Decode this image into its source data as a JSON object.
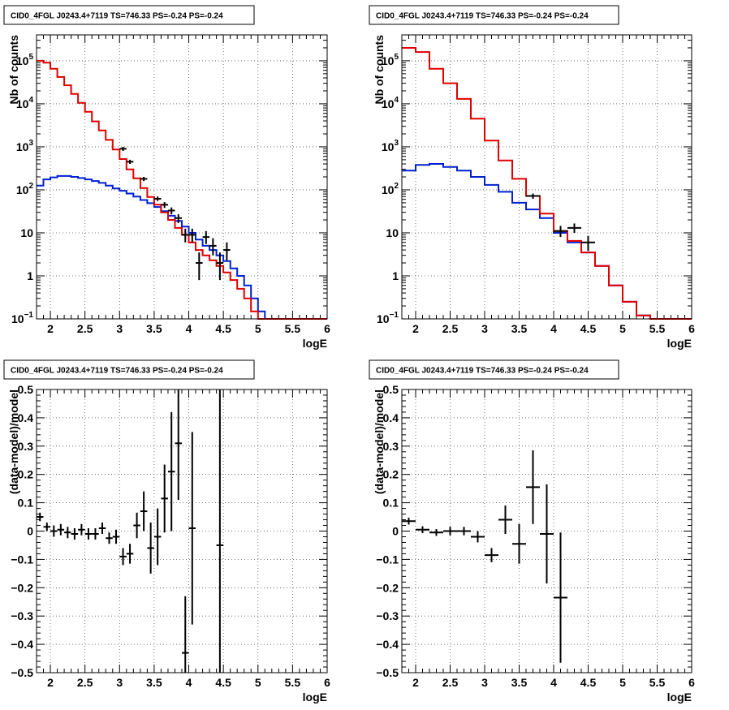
{
  "colors": {
    "total_model": "#e00000",
    "source_model": "#0020d0",
    "data": "#000000",
    "frame": "#000000",
    "grid": "#555555"
  },
  "chart_data": [
    {
      "type": "line",
      "title": "CID0_4FGL J0243.4+7119 TS=746.33 PS=-0.24 PS=-0.24",
      "xlabel": "logE",
      "ylabel": "Nb of counts",
      "log_y": true,
      "xlim": [
        1.8,
        6.0
      ],
      "ylim": [
        0.1,
        400000
      ],
      "grid": true,
      "x_ticks": [
        2,
        2.5,
        3,
        3.5,
        4,
        4.5,
        5,
        5.5,
        6
      ],
      "x_tick_labels": [
        "2",
        "2.5",
        "3",
        "3.5",
        "4",
        "4.5",
        "5",
        "5.5",
        "6"
      ],
      "y_ticks": [
        0.1,
        1,
        10,
        100,
        1000,
        10000,
        100000
      ],
      "y_tick_labels": [
        {
          "base": "10",
          "exp": "−1"
        },
        {
          "base": "1",
          "exp": ""
        },
        {
          "base": "10",
          "exp": ""
        },
        {
          "base": "10",
          "exp": "2"
        },
        {
          "base": "10",
          "exp": "3"
        },
        {
          "base": "10",
          "exp": "4"
        },
        {
          "base": "10",
          "exp": "5"
        }
      ],
      "bin_edges": [
        1.8,
        1.9,
        2.0,
        2.1,
        2.2,
        2.3,
        2.4,
        2.5,
        2.6,
        2.7,
        2.8,
        2.9,
        3.0,
        3.1,
        3.2,
        3.3,
        3.4,
        3.5,
        3.6,
        3.7,
        3.8,
        3.9,
        4.0,
        4.1,
        4.2,
        4.3,
        4.4,
        4.5,
        4.6,
        4.7,
        4.8,
        4.9,
        5.0,
        5.1,
        5.2,
        5.3,
        5.4,
        5.5,
        5.6,
        5.7,
        5.8,
        5.9,
        6.0
      ],
      "series": [
        {
          "values": [
            100000,
            90000,
            65000,
            42000,
            27000,
            17000,
            10500,
            6500,
            3900,
            2400,
            1450,
            870,
            520,
            300,
            185,
            110,
            68,
            45,
            30,
            20,
            13,
            9,
            6,
            4,
            3,
            2.3,
            1.7,
            1.2,
            0.8,
            0.5,
            0.3,
            0.15,
            0.1,
            0.1,
            0.1,
            0.1,
            0.1,
            0.1,
            0.1,
            0.1,
            0.1,
            0.1
          ]
        },
        {
          "values": [
            125,
            175,
            195,
            210,
            210,
            200,
            188,
            175,
            160,
            145,
            125,
            108,
            95,
            82,
            70,
            58,
            49,
            40,
            32,
            25,
            19,
            14,
            10,
            7,
            5,
            4,
            3,
            2.2,
            1.5,
            1.0,
            0.6,
            0.3,
            0.15,
            0.1,
            0.1,
            0.1,
            0.1,
            0.1,
            0.1,
            0.1,
            0.1,
            0.1
          ]
        }
      ],
      "data_points": [
        {
          "x": 3.05,
          "y": 900,
          "lo": 800,
          "hi": 1000
        },
        {
          "x": 3.15,
          "y": 450,
          "lo": 400,
          "hi": 500
        },
        {
          "x": 3.35,
          "y": 180,
          "lo": 160,
          "hi": 200
        },
        {
          "x": 3.55,
          "y": 62,
          "lo": 55,
          "hi": 70
        },
        {
          "x": 3.65,
          "y": 45,
          "lo": 38,
          "hi": 52
        },
        {
          "x": 3.75,
          "y": 33,
          "lo": 27,
          "hi": 39
        },
        {
          "x": 3.85,
          "y": 22,
          "lo": 17,
          "hi": 27
        },
        {
          "x": 3.95,
          "y": 9,
          "lo": 6,
          "hi": 12.5
        },
        {
          "x": 4.05,
          "y": 9,
          "lo": 6,
          "hi": 12.5
        },
        {
          "x": 4.15,
          "y": 2,
          "lo": 0.8,
          "hi": 3.5
        },
        {
          "x": 4.25,
          "y": 8,
          "lo": 5.5,
          "hi": 11
        },
        {
          "x": 4.35,
          "y": 5,
          "lo": 3,
          "hi": 7.5
        },
        {
          "x": 4.45,
          "y": 2,
          "lo": 0.8,
          "hi": 3.5
        },
        {
          "x": 4.55,
          "y": 4,
          "lo": 2.3,
          "hi": 6
        }
      ]
    },
    {
      "type": "line",
      "title": "CID0_4FGL J0243.4+7119 TS=746.33 PS=-0.24 PS=-0.24",
      "xlabel": "logE",
      "ylabel": "Nb of counts",
      "log_y": true,
      "xlim": [
        1.8,
        6.0
      ],
      "ylim": [
        0.1,
        400000
      ],
      "grid": true,
      "x_ticks": [
        2,
        2.5,
        3,
        3.5,
        4,
        4.5,
        5,
        5.5,
        6
      ],
      "x_tick_labels": [
        "2",
        "2.5",
        "3",
        "3.5",
        "4",
        "4.5",
        "5",
        "5.5",
        "6"
      ],
      "y_ticks": [
        0.1,
        1,
        10,
        100,
        1000,
        10000,
        100000
      ],
      "y_tick_labels": [
        {
          "base": "10",
          "exp": "−1"
        },
        {
          "base": "1",
          "exp": ""
        },
        {
          "base": "10",
          "exp": ""
        },
        {
          "base": "10",
          "exp": "2"
        },
        {
          "base": "10",
          "exp": "3"
        },
        {
          "base": "10",
          "exp": "4"
        },
        {
          "base": "10",
          "exp": "5"
        }
      ],
      "bin_edges": [
        1.8,
        2.0,
        2.2,
        2.4,
        2.6,
        2.8,
        3.0,
        3.2,
        3.4,
        3.6,
        3.8,
        4.0,
        4.2,
        4.4,
        4.6,
        4.8,
        5.0,
        5.2,
        5.4,
        5.6,
        5.8,
        6.0
      ],
      "series": [
        {
          "values": [
            200000,
            160000,
            65000,
            30000,
            13000,
            4500,
            1400,
            480,
            180,
            72,
            28,
            11,
            6.5,
            3.5,
            1.7,
            0.6,
            0.25,
            0.12,
            0.1,
            0.1,
            0.1
          ]
        },
        {
          "values": [
            280,
            380,
            400,
            340,
            280,
            200,
            130,
            90,
            50,
            35,
            22,
            10,
            6,
            3.5,
            1.7,
            0.6,
            0.25,
            0.12,
            0.1,
            0.1,
            0.1
          ]
        }
      ],
      "data_points": [
        {
          "x": 3.7,
          "y": 72,
          "lo": 62,
          "hi": 82
        },
        {
          "x": 4.1,
          "y": 11,
          "lo": 8,
          "hi": 14.5
        },
        {
          "x": 4.3,
          "y": 13,
          "lo": 10,
          "hi": 16.5
        },
        {
          "x": 4.5,
          "y": 6,
          "lo": 3.8,
          "hi": 8.5
        }
      ]
    },
    {
      "type": "scatter",
      "title": "CID0_4FGL J0243.4+7119 TS=746.33 PS=-0.24 PS=-0.24",
      "xlabel": "logE",
      "ylabel": "(data-model)/model",
      "xlim": [
        1.8,
        6.0
      ],
      "ylim": [
        -0.5,
        0.5
      ],
      "grid": true,
      "x_ticks": [
        2,
        2.5,
        3,
        3.5,
        4,
        4.5,
        5,
        5.5,
        6
      ],
      "x_tick_labels": [
        "2",
        "2.5",
        "3",
        "3.5",
        "4",
        "4.5",
        "5",
        "5.5",
        "6"
      ],
      "y_ticks": [
        -0.5,
        -0.4,
        -0.3,
        -0.2,
        -0.1,
        0,
        0.1,
        0.2,
        0.3,
        0.4,
        0.5
      ],
      "y_tick_labels": [
        "−0.5",
        "−0.4",
        "−0.3",
        "−0.2",
        "−0.1",
        "0",
        "0.1",
        "0.2",
        "0.3",
        "0.4",
        "0.5"
      ],
      "x_half_width": 0.05,
      "points": [
        {
          "x": 1.85,
          "y": 0.05,
          "err": 0.015
        },
        {
          "x": 1.95,
          "y": 0.015,
          "err": 0.015
        },
        {
          "x": 2.05,
          "y": 0.0,
          "err": 0.02
        },
        {
          "x": 2.15,
          "y": 0.005,
          "err": 0.02
        },
        {
          "x": 2.25,
          "y": -0.005,
          "err": 0.02
        },
        {
          "x": 2.35,
          "y": -0.01,
          "err": 0.02
        },
        {
          "x": 2.45,
          "y": 0.005,
          "err": 0.02
        },
        {
          "x": 2.55,
          "y": -0.01,
          "err": 0.02
        },
        {
          "x": 2.65,
          "y": -0.01,
          "err": 0.02
        },
        {
          "x": 2.75,
          "y": 0.01,
          "err": 0.02
        },
        {
          "x": 2.85,
          "y": -0.025,
          "err": 0.02
        },
        {
          "x": 2.95,
          "y": -0.02,
          "err": 0.025
        },
        {
          "x": 3.05,
          "y": -0.09,
          "err": 0.03
        },
        {
          "x": 3.15,
          "y": -0.08,
          "err": 0.035
        },
        {
          "x": 3.25,
          "y": 0.02,
          "err": 0.045
        },
        {
          "x": 3.35,
          "y": 0.07,
          "err": 0.07
        },
        {
          "x": 3.45,
          "y": -0.06,
          "err": 0.09
        },
        {
          "x": 3.55,
          "y": -0.02,
          "err": 0.1
        },
        {
          "x": 3.65,
          "y": 0.115,
          "err": 0.12
        },
        {
          "x": 3.75,
          "y": 0.21,
          "err": 0.21
        },
        {
          "x": 3.85,
          "y": 0.31,
          "err": 0.2
        },
        {
          "x": 3.95,
          "y": -0.43,
          "err": 0.2
        },
        {
          "x": 4.05,
          "y": 0.01,
          "err": 0.34
        },
        {
          "x": 4.45,
          "y": -0.05,
          "err": 0.75
        }
      ]
    },
    {
      "type": "scatter",
      "title": "CID0_4FGL J0243.4+7119 TS=746.33 PS=-0.24 PS=-0.24",
      "xlabel": "logE",
      "ylabel": "(data-model)/model",
      "xlim": [
        1.8,
        6.0
      ],
      "ylim": [
        -0.5,
        0.5
      ],
      "grid": true,
      "x_ticks": [
        2,
        2.5,
        3,
        3.5,
        4,
        4.5,
        5,
        5.5,
        6
      ],
      "x_tick_labels": [
        "2",
        "2.5",
        "3",
        "3.5",
        "4",
        "4.5",
        "5",
        "5.5",
        "6"
      ],
      "y_ticks": [
        -0.5,
        -0.4,
        -0.3,
        -0.2,
        -0.1,
        0,
        0.1,
        0.2,
        0.3,
        0.4,
        0.5
      ],
      "y_tick_labels": [
        "−0.5",
        "−0.4",
        "−0.3",
        "−0.2",
        "−0.1",
        "0",
        "0.1",
        "0.2",
        "0.3",
        "0.4",
        "0.5"
      ],
      "x_half_width": 0.1,
      "points": [
        {
          "x": 1.9,
          "y": 0.035,
          "err": 0.012
        },
        {
          "x": 2.1,
          "y": 0.005,
          "err": 0.012
        },
        {
          "x": 2.3,
          "y": -0.005,
          "err": 0.012
        },
        {
          "x": 2.5,
          "y": 0.0,
          "err": 0.015
        },
        {
          "x": 2.7,
          "y": 0.0,
          "err": 0.015
        },
        {
          "x": 2.9,
          "y": -0.02,
          "err": 0.02
        },
        {
          "x": 3.1,
          "y": -0.085,
          "err": 0.025
        },
        {
          "x": 3.3,
          "y": 0.04,
          "err": 0.05
        },
        {
          "x": 3.5,
          "y": -0.045,
          "err": 0.07
        },
        {
          "x": 3.7,
          "y": 0.155,
          "err": 0.13
        },
        {
          "x": 3.9,
          "y": -0.01,
          "err": 0.175
        },
        {
          "x": 4.1,
          "y": -0.235,
          "err": 0.23
        }
      ]
    }
  ]
}
